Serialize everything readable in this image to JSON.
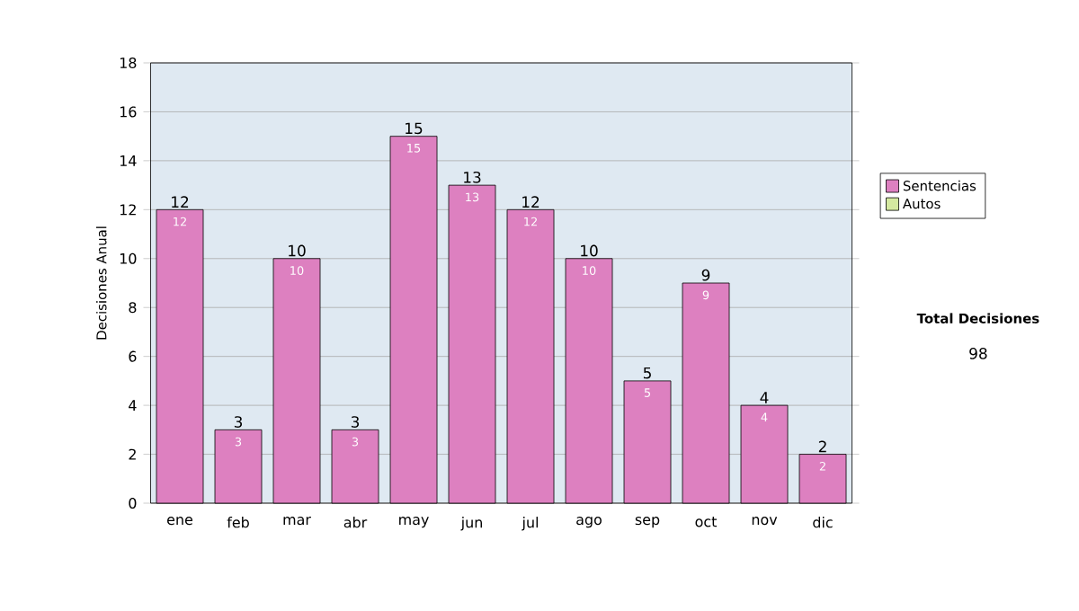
{
  "chart_data": {
    "type": "bar",
    "stacked": true,
    "ylabel": "Decisiones Anual",
    "categories": [
      "ene",
      "feb",
      "mar",
      "abr",
      "may",
      "jun",
      "jul",
      "ago",
      "sep",
      "oct",
      "nov",
      "dic"
    ],
    "series": [
      {
        "name": "Sentencias",
        "color": "#dd80c0",
        "values": [
          12,
          3,
          10,
          3,
          15,
          13,
          12,
          10,
          5,
          9,
          4,
          2
        ],
        "value_labels": [
          "12",
          "3",
          "10",
          "3",
          "15",
          "13",
          "12",
          "10",
          "5",
          "9",
          "4",
          "2"
        ]
      },
      {
        "name": "Autos",
        "color": "#d4e8a0",
        "values": [
          0,
          0,
          0,
          0,
          0,
          0,
          0,
          0,
          0,
          0,
          0,
          0
        ]
      }
    ],
    "totals": [
      "12",
      "3",
      "10",
      "3",
      "15",
      "13",
      "12",
      "10",
      "5",
      "9",
      "4",
      "2"
    ],
    "ylim": [
      0,
      18
    ],
    "yticks": [
      0,
      2,
      4,
      6,
      8,
      10,
      12,
      14,
      16,
      18
    ],
    "grid": "y",
    "legend": "right",
    "annotations": [
      "Total Decisiones",
      "98"
    ]
  }
}
